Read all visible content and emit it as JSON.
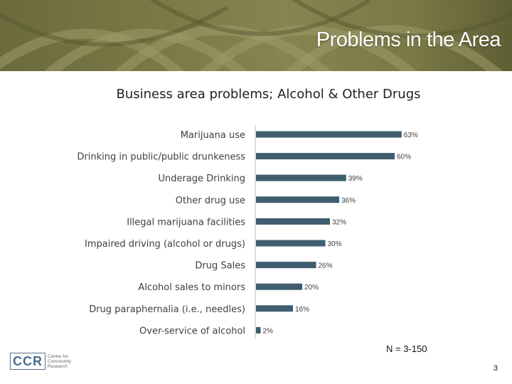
{
  "header": {
    "title": "Problems in the Area"
  },
  "chart_data": {
    "type": "bar",
    "orientation": "horizontal",
    "title": "Business area problems; Alcohol & Other Drugs",
    "categories": [
      "Marijuana use",
      "Drinking in public/public drunkeness",
      "Underage Drinking",
      "Other drug use",
      "Illegal marijuana facilities",
      "Impaired driving (alcohol or drugs)",
      "Drug Sales",
      "Alcohol sales to minors",
      "Drug paraphernalia (i.e., needles)",
      "Over-service of alcohol"
    ],
    "values": [
      63,
      60,
      39,
      36,
      32,
      30,
      26,
      20,
      16,
      2
    ],
    "value_labels": [
      "63%",
      "60%",
      "39%",
      "36%",
      "32%",
      "30%",
      "26%",
      "20%",
      "16%",
      "2%"
    ],
    "xlim": [
      0,
      100
    ],
    "bar_color": "#3f5d6f",
    "grid": false,
    "legend": "none"
  },
  "footnote": "N = 3-150",
  "logo": {
    "abbr": "CCR",
    "line1": "Center for",
    "line2": "Community",
    "line3": "Research"
  },
  "page_number": "3"
}
